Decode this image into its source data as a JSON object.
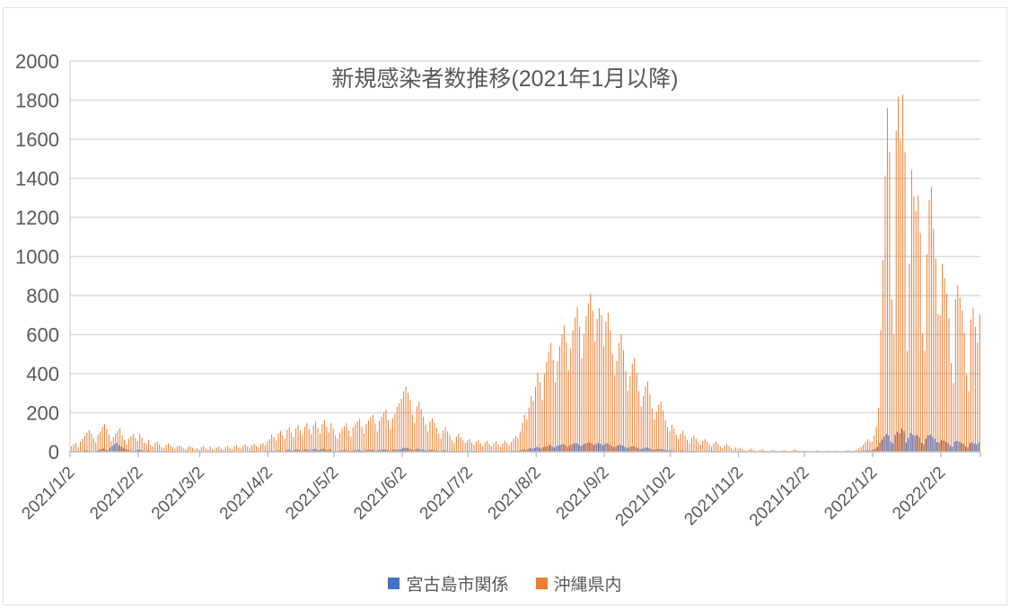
{
  "colors": {
    "background": "#FFFFFF",
    "grid": "#D9D9D9",
    "axis": "#BFBFBF",
    "text": "#595959",
    "frame": "#E2E2E2"
  },
  "chart_data": {
    "type": "bar",
    "title": "新規感染者数推移(2021年1月以降)",
    "xlabel": "",
    "ylabel": "",
    "ylim": [
      0,
      2000
    ],
    "ytick_step": 200,
    "grid": true,
    "legend_position": "bottom",
    "x_frequency": "daily",
    "x_start_date": "2021/1/2",
    "x_tick_labels": [
      "2021/1/2",
      "2021/2/2",
      "2021/3/2",
      "2021/4/2",
      "2021/5/2",
      "2021/6/2",
      "2021/7/2",
      "2021/8/2",
      "2021/9/2",
      "2021/10/2",
      "2021/11/2",
      "2021/12/2",
      "2022/1/2",
      "2022/2/2"
    ],
    "x_tick_day_indices": [
      0,
      31,
      59,
      90,
      120,
      151,
      181,
      212,
      243,
      273,
      304,
      334,
      365,
      396
    ],
    "series": [
      {
        "name": "宮古島市関係",
        "color": "#4472C4",
        "values": [
          2,
          3,
          1,
          0,
          2,
          4,
          6,
          8,
          5,
          3,
          2,
          1,
          6,
          10,
          14,
          18,
          12,
          8,
          22,
          30,
          38,
          45,
          33,
          26,
          19,
          14,
          10,
          7,
          5,
          4,
          8,
          12,
          9,
          6,
          4,
          7,
          5,
          3,
          2,
          4,
          3,
          2,
          1,
          2,
          3,
          2,
          1,
          0,
          1,
          2,
          1,
          0,
          0,
          1,
          1,
          0,
          0,
          1,
          0,
          1,
          0,
          0,
          1,
          2,
          1,
          0,
          0,
          1,
          0,
          0,
          1,
          1,
          0,
          0,
          1,
          2,
          1,
          0,
          1,
          2,
          1,
          0,
          1,
          1,
          0,
          0,
          1,
          2,
          1,
          2,
          3,
          5,
          4,
          2,
          6,
          8,
          5,
          3,
          9,
          12,
          8,
          5,
          10,
          13,
          9,
          6,
          11,
          14,
          10,
          7,
          12,
          15,
          11,
          8,
          13,
          16,
          12,
          9,
          14,
          6,
          4,
          3,
          5,
          7,
          8,
          9,
          6,
          4,
          7,
          8,
          9,
          10,
          7,
          5,
          8,
          9,
          10,
          11,
          8,
          5,
          9,
          10,
          11,
          12,
          9,
          6,
          9,
          14,
          11,
          9,
          13,
          17,
          21,
          19,
          16,
          12,
          9,
          14,
          16,
          13,
          11,
          8,
          6,
          9,
          10,
          9,
          7,
          5,
          4,
          6,
          8,
          6,
          5,
          3,
          2,
          4,
          5,
          4,
          3,
          2,
          3,
          4,
          2,
          1,
          3,
          4,
          2,
          1,
          2,
          3,
          2,
          1,
          2,
          3,
          2,
          1,
          2,
          3,
          2,
          1,
          3,
          4,
          5,
          4,
          6,
          9,
          12,
          10,
          14,
          18,
          16,
          20,
          25,
          22,
          16,
          24,
          28,
          31,
          34,
          28,
          21,
          28,
          33,
          36,
          39,
          34,
          25,
          32,
          38,
          42,
          45,
          39,
          29,
          36,
          42,
          46,
          49,
          44,
          34,
          41,
          44,
          42,
          33,
          40,
          43,
          37,
          30,
          24,
          28,
          33,
          36,
          31,
          25,
          19,
          23,
          27,
          29,
          24,
          19,
          14,
          17,
          20,
          22,
          18,
          13,
          10,
          12,
          14,
          15,
          13,
          10,
          8,
          6,
          8,
          7,
          5,
          4,
          6,
          7,
          5,
          4,
          3,
          4,
          5,
          4,
          3,
          2,
          3,
          4,
          3,
          2,
          1,
          3,
          3,
          2,
          2,
          1,
          2,
          2,
          2,
          1,
          1,
          2,
          1,
          1,
          1,
          0,
          0,
          1,
          1,
          1,
          0,
          0,
          1,
          1,
          0,
          0,
          0,
          0,
          1,
          0,
          0,
          0,
          0,
          1,
          0,
          0,
          0,
          0,
          1,
          0,
          0,
          0,
          0,
          0,
          0,
          0,
          0,
          0,
          0,
          0,
          0,
          0,
          0,
          0,
          0,
          0,
          0,
          0,
          0,
          0,
          0,
          0,
          1,
          1,
          0,
          1,
          1,
          2,
          3,
          4,
          6,
          8,
          6,
          6,
          10,
          16,
          26,
          48,
          62,
          78,
          92,
          84,
          52,
          44,
          88,
          102,
          95,
          118,
          105,
          48,
          70,
          96,
          88,
          82,
          86,
          75,
          46,
          40,
          68,
          84,
          88,
          76,
          66,
          50,
          48,
          62,
          58,
          52,
          45,
          32,
          26,
          52,
          56,
          51,
          47,
          40,
          28,
          22,
          45,
          48,
          42,
          38,
          46
        ]
      },
      {
        "name": "沖縄県内",
        "color": "#ED7D31",
        "values": [
          28,
          39,
          45,
          21,
          52,
          66,
          83,
          98,
          112,
          95,
          70,
          48,
          88,
          103,
          126,
          141,
          118,
          86,
          54,
          77,
          95,
          108,
          120,
          84,
          62,
          38,
          66,
          78,
          89,
          71,
          55,
          90,
          71,
          48,
          40,
          62,
          33,
          28,
          45,
          51,
          38,
          24,
          19,
          36,
          42,
          30,
          22,
          15,
          27,
          33,
          25,
          17,
          12,
          24,
          29,
          21,
          14,
          18,
          10,
          23,
          29,
          18,
          12,
          26,
          14,
          9,
          21,
          27,
          16,
          11,
          24,
          31,
          19,
          13,
          28,
          35,
          22,
          17,
          30,
          38,
          26,
          20,
          34,
          41,
          29,
          23,
          37,
          45,
          33,
          52,
          66,
          88,
          74,
          58,
          95,
          108,
          84,
          67,
          112,
          125,
          98,
          76,
          118,
          136,
          109,
          85,
          127,
          146,
          115,
          90,
          133,
          155,
          121,
          95,
          140,
          163,
          128,
          100,
          146,
          120,
          84,
          66,
          98,
          118,
          132,
          146,
          110,
          78,
          124,
          140,
          156,
          168,
          128,
          92,
          142,
          160,
          176,
          190,
          146,
          104,
          158,
          180,
          200,
          216,
          162,
          118,
          172,
          194,
          230,
          248,
          272,
          310,
          335,
          302,
          266,
          190,
          146,
          230,
          256,
          218,
          180,
          140,
          104,
          156,
          172,
          148,
          124,
          92,
          68,
          110,
          126,
          104,
          86,
          60,
          44,
          78,
          92,
          74,
          58,
          46,
          58,
          66,
          48,
          36,
          52,
          60,
          44,
          30,
          46,
          56,
          40,
          28,
          44,
          54,
          38,
          26,
          42,
          58,
          46,
          34,
          50,
          66,
          80,
          70,
          104,
          148,
          190,
          165,
          226,
          284,
          260,
          332,
          405,
          356,
          266,
          398,
          460,
          512,
          558,
          470,
          354,
          464,
          540,
          602,
          648,
          560,
          418,
          528,
          622,
          688,
          742,
          640,
          478,
          602,
          695,
          760,
          809,
          726,
          565,
          680,
          735,
          700,
          540,
          666,
          712,
          622,
          500,
          394,
          465,
          556,
          600,
          520,
          415,
          312,
          388,
          452,
          480,
          404,
          310,
          232,
          287,
          336,
          360,
          295,
          222,
          166,
          204,
          240,
          256,
          210,
          160,
          127,
          104,
          138,
          120,
          88,
          66,
          94,
          108,
          84,
          62,
          44,
          70,
          82,
          66,
          50,
          36,
          56,
          66,
          52,
          38,
          26,
          44,
          52,
          40,
          28,
          18,
          32,
          40,
          30,
          20,
          12,
          24,
          16,
          21,
          14,
          8,
          5,
          12,
          17,
          10,
          6,
          3,
          9,
          14,
          8,
          4,
          2,
          7,
          11,
          6,
          3,
          1,
          5,
          9,
          5,
          2,
          4,
          8,
          12,
          7,
          3,
          6,
          4,
          7,
          3,
          1,
          2,
          5,
          8,
          4,
          2,
          0,
          3,
          6,
          2,
          1,
          4,
          7,
          3,
          1,
          2,
          5,
          9,
          6,
          3,
          8,
          12,
          17,
          24,
          36,
          50,
          64,
          52,
          52,
          84,
          130,
          225,
          623,
          981,
          1414,
          1759,
          1533,
          779,
          600,
          1644,
          1817,
          1596,
          1829,
          1533,
          515,
          962,
          1443,
          1309,
          1231,
          1313,
          1120,
          608,
          515,
          1011,
          1290,
          1355,
          1142,
          988,
          706,
          698,
          960,
          888,
          810,
          684,
          454,
          352,
          782,
          854,
          790,
          722,
          610,
          398,
          310,
          678,
          738,
          640,
          560,
          704
        ]
      }
    ]
  }
}
